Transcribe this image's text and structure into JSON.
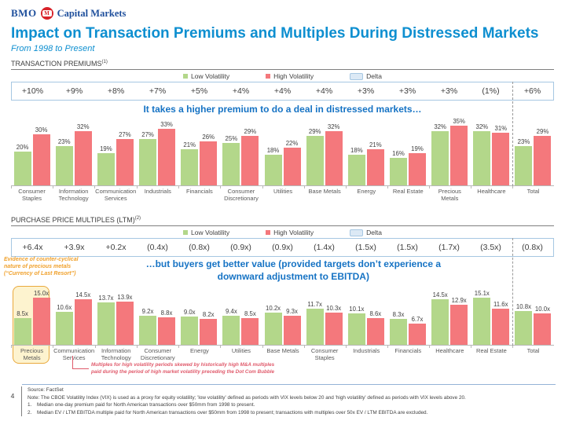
{
  "brand": {
    "bmo": "BMO",
    "logo_letter": "M",
    "division": "Capital Markets",
    "logo_red": "#d8232a",
    "wordmark_blue": "#1e4f9c"
  },
  "title": "Impact on Transaction Premiums and Multiples During Distressed Markets",
  "subtitle": "From 1998 to Present",
  "legend": {
    "low": "Low Volatility",
    "high": "High Volatility",
    "delta": "Delta"
  },
  "colors": {
    "low_volatility_bar": "#b3d78a",
    "high_volatility_bar": "#f4787c",
    "title_blue": "#0e8fd0",
    "annotation_blue": "#1673c4",
    "annotation_orange": "#f0a12c",
    "annotation_red": "#e05a6b",
    "delta_box_border": "#a6c7e2",
    "highlight_fill": "#fdf3cf",
    "highlight_border": "#e9a93d"
  },
  "chart_data": [
    {
      "type": "bar",
      "title": "TRANSACTION PREMIUMS",
      "title_superscript": "(1)",
      "categories": [
        "Consumer Staples",
        "Information Technology",
        "Communication Services",
        "Industrials",
        "Financials",
        "Consumer Discretionary",
        "Utilities",
        "Base Metals",
        "Energy",
        "Real Estate",
        "Precious Metals",
        "Healthcare",
        "Total"
      ],
      "series": [
        {
          "name": "Low Volatility",
          "values": [
            20,
            23,
            19,
            27,
            21,
            25,
            18,
            29,
            18,
            16,
            32,
            32,
            23
          ],
          "labels": [
            "20%",
            "23%",
            "19%",
            "27%",
            "21%",
            "25%",
            "18%",
            "29%",
            "18%",
            "16%",
            "32%",
            "32%",
            "23%"
          ]
        },
        {
          "name": "High Volatility",
          "values": [
            30,
            32,
            27,
            33,
            26,
            29,
            22,
            32,
            21,
            19,
            35,
            31,
            29
          ],
          "labels": [
            "30%",
            "32%",
            "27%",
            "33%",
            "26%",
            "29%",
            "22%",
            "32%",
            "21%",
            "19%",
            "35%",
            "31%",
            "29%"
          ]
        }
      ],
      "delta_row": [
        "+10%",
        "+9%",
        "+8%",
        "+7%",
        "+5%",
        "+4%",
        "+4%",
        "+4%",
        "+3%",
        "+3%",
        "+3%",
        "(1%)",
        "+6%"
      ],
      "annotation": "It takes a higher premium to do a deal in distressed markets…",
      "ylim": [
        0,
        35
      ],
      "grid": false,
      "legend_position": "top",
      "last_column_separated": true
    },
    {
      "type": "bar",
      "title": "PURCHASE PRICE MULTIPLES (LTM)",
      "title_superscript": "(2)",
      "categories": [
        "Precious Metals",
        "Communication Services",
        "Information Technology",
        "Consumer Discretionary",
        "Energy",
        "Utilities",
        "Base Metals",
        "Consumer Staples",
        "Industrials",
        "Financials",
        "Healthcare",
        "Real Estate",
        "Total"
      ],
      "series": [
        {
          "name": "Low Volatility",
          "values": [
            8.5,
            10.6,
            13.7,
            9.2,
            9.0,
            9.4,
            10.2,
            11.7,
            10.1,
            8.3,
            14.5,
            15.1,
            10.8
          ],
          "labels": [
            "8.5x",
            "10.6x",
            "13.7x",
            "9.2x",
            "9.0x",
            "9.4x",
            "10.2x",
            "11.7x",
            "10.1x",
            "8.3x",
            "14.5x",
            "15.1x",
            "10.8x"
          ]
        },
        {
          "name": "High Volatility",
          "values": [
            15.0,
            14.5,
            13.9,
            8.8,
            8.2,
            8.5,
            9.3,
            10.3,
            8.6,
            6.7,
            12.9,
            11.6,
            10.0
          ],
          "labels": [
            "15.0x",
            "14.5x",
            "13.9x",
            "8.8x",
            "8.2x",
            "8.5x",
            "9.3x",
            "10.3x",
            "8.6x",
            "6.7x",
            "12.9x",
            "11.6x",
            "10.0x"
          ]
        }
      ],
      "delta_row": [
        "+6.4x",
        "+3.9x",
        "+0.2x",
        "(0.4x)",
        "(0.8x)",
        "(0.9x)",
        "(0.9x)",
        "(1.4x)",
        "(1.5x)",
        "(1.5x)",
        "(1.7x)",
        "(3.5x)",
        "(0.8x)"
      ],
      "annotation": "…but buyers get better value (provided targets don’t experience a downward adjustment to EBITDA)",
      "annotation_left": "Evidence of counter-cyclical\nnature of precious metals\n(“Currency of Last Resort”)",
      "annotation_callout": "Multiples for high volatility periods skewed by historically high M&A multiples paid during the period of high market volatility preceding the Dot Com Bubble",
      "highlighted_category": "Precious Metals",
      "ylim": [
        0,
        15.1
      ],
      "grid": false,
      "legend_position": "top",
      "last_column_separated": true
    }
  ],
  "footer": {
    "page_number": "4",
    "source": "Source: FactSet",
    "note": "Note: The CBOE Volatility Index (VIX) is used as a proxy for equity volatility; 'low volatility' defined as periods with VIX levels below 20 and 'high volatility' defined as periods with VIX levels above 20.",
    "notes": [
      {
        "num": "1.",
        "text": "Median one-day premium paid for North American transactions over $50mm from 1998 to present."
      },
      {
        "num": "2.",
        "text": "Median EV / LTM EBITDA multiple paid for North American transactions over $50mm from 1998 to present; transactions with multiples over 50x EV / LTM EBITDA are excluded."
      }
    ]
  }
}
